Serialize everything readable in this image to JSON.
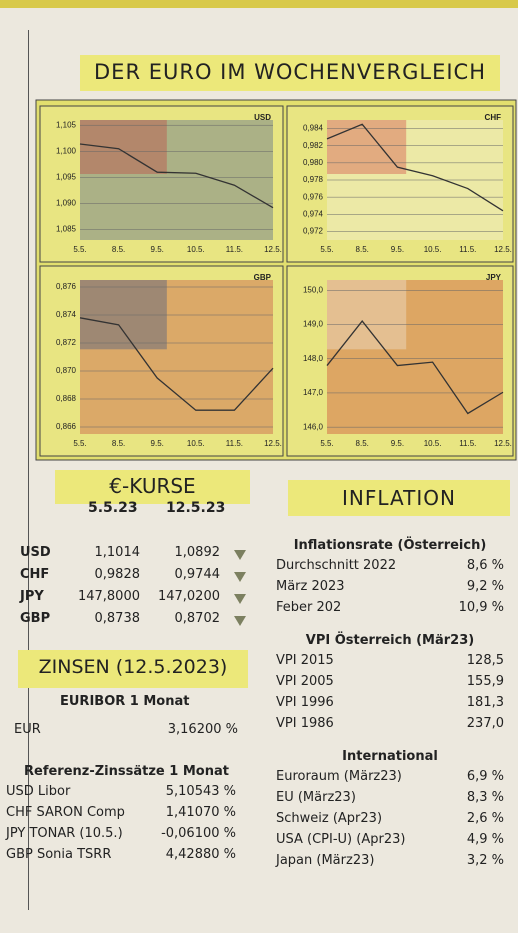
{
  "header": "DER EURO IM WOCHENVERGLEICH",
  "chart_data": [
    {
      "type": "line",
      "title": "USD",
      "categories": [
        "5.5.",
        "8.5.",
        "9.5.",
        "10.5.",
        "11.5.",
        "12.5."
      ],
      "values": [
        1.1014,
        1.1005,
        1.096,
        1.0958,
        1.0935,
        1.0892
      ],
      "color": "#333333",
      "ylim": [
        1.083,
        1.106
      ],
      "yticks": [
        {
          "value": 1.085,
          "label": "1,085"
        },
        {
          "value": 1.09,
          "label": "1,090"
        },
        {
          "value": 1.095,
          "label": "1,095"
        },
        {
          "value": 1.1,
          "label": "1,100"
        },
        {
          "value": 1.105,
          "label": "1,105"
        }
      ]
    },
    {
      "type": "line",
      "title": "CHF",
      "categories": [
        "5.5.",
        "8.5.",
        "9.5.",
        "10.5.",
        "11.5.",
        "12.5."
      ],
      "values": [
        0.9828,
        0.9845,
        0.9795,
        0.9785,
        0.977,
        0.9744
      ],
      "color": "#333333",
      "ylim": [
        0.971,
        0.985
      ],
      "yticks": [
        {
          "value": 0.972,
          "label": "0,972"
        },
        {
          "value": 0.974,
          "label": "0,974"
        },
        {
          "value": 0.976,
          "label": "0,976"
        },
        {
          "value": 0.978,
          "label": "0,978"
        },
        {
          "value": 0.98,
          "label": "0,980"
        },
        {
          "value": 0.982,
          "label": "0,982"
        },
        {
          "value": 0.984,
          "label": "0,984"
        }
      ]
    },
    {
      "type": "line",
      "title": "GBP",
      "categories": [
        "5.5.",
        "8.5.",
        "9.5.",
        "10.5.",
        "11.5.",
        "12.5."
      ],
      "values": [
        0.8738,
        0.8733,
        0.8695,
        0.8672,
        0.8672,
        0.8702
      ],
      "color": "#333333",
      "ylim": [
        0.8655,
        0.8765
      ],
      "yticks": [
        {
          "value": 0.866,
          "label": "0,866"
        },
        {
          "value": 0.868,
          "label": "0,868"
        },
        {
          "value": 0.87,
          "label": "0,870"
        },
        {
          "value": 0.872,
          "label": "0,872"
        },
        {
          "value": 0.874,
          "label": "0,874"
        },
        {
          "value": 0.876,
          "label": "0,876"
        }
      ]
    },
    {
      "type": "line",
      "title": "JPY",
      "categories": [
        "5.5.",
        "8.5.",
        "9.5.",
        "10.5.",
        "11.5.",
        "12.5."
      ],
      "values": [
        147.8,
        149.1,
        147.8,
        147.9,
        146.4,
        147.02
      ],
      "color": "#333333",
      "ylim": [
        145.8,
        150.3
      ],
      "yticks": [
        {
          "value": 146,
          "label": "146,0"
        },
        {
          "value": 147,
          "label": "147,0"
        },
        {
          "value": 148,
          "label": "148,0"
        },
        {
          "value": 149,
          "label": "149,0"
        },
        {
          "value": 150,
          "label": "150,0"
        }
      ]
    }
  ],
  "kurse": {
    "title": "€-KURSE",
    "columns": [
      "5.5.23",
      "12.5.23"
    ],
    "rows": [
      [
        "USD",
        "1,1014",
        "1,0892"
      ],
      [
        "CHF",
        "0,9828",
        "0,9744"
      ],
      [
        "JPY",
        "147,8000",
        "147,0200"
      ],
      [
        "GBP",
        "0,8738",
        "0,8702"
      ]
    ]
  },
  "zinsen": {
    "title": "ZINSEN (12.5.2023)",
    "euribor_title": "EURIBOR 1 Monat",
    "euribor": [
      [
        "EUR",
        "3,16200 %"
      ]
    ],
    "ref_title": "Referenz-Zinssätze 1 Monat",
    "ref": [
      [
        "USD Libor",
        "5,10543 %"
      ],
      [
        "CHF SARON Comp",
        "1,41070 %"
      ],
      [
        "JPY TONAR (10.5.)",
        "-0,06100 %"
      ],
      [
        "GBP Sonia TSRR",
        "4,42880 %"
      ]
    ]
  },
  "inflation": {
    "title": "INFLATION",
    "sections": [
      {
        "title": "Inflationsrate (Österreich)",
        "rows": [
          [
            "Durchschnitt 2022",
            "8,6 %"
          ],
          [
            "März 2023",
            "9,2 %"
          ],
          [
            "Feber 202",
            "10,9 %"
          ]
        ]
      },
      {
        "title": "VPI Österreich (Mär23)",
        "rows": [
          [
            "VPI 2015",
            "128,5"
          ],
          [
            "VPI 2005",
            "155,9"
          ],
          [
            "VPI 1996",
            "181,3"
          ],
          [
            "VPI 1986",
            "237,0"
          ]
        ]
      },
      {
        "title": "International",
        "rows": [
          [
            "Euroraum (März23)",
            "6,9 %"
          ],
          [
            "EU (März23)",
            "8,3 %"
          ],
          [
            "Schweiz (Apr23)",
            "2,6 %"
          ],
          [
            "USA (CPI-U) (Apr23)",
            "4,9 %"
          ],
          [
            "Japan (März23)",
            "3,2 %"
          ]
        ]
      }
    ]
  }
}
